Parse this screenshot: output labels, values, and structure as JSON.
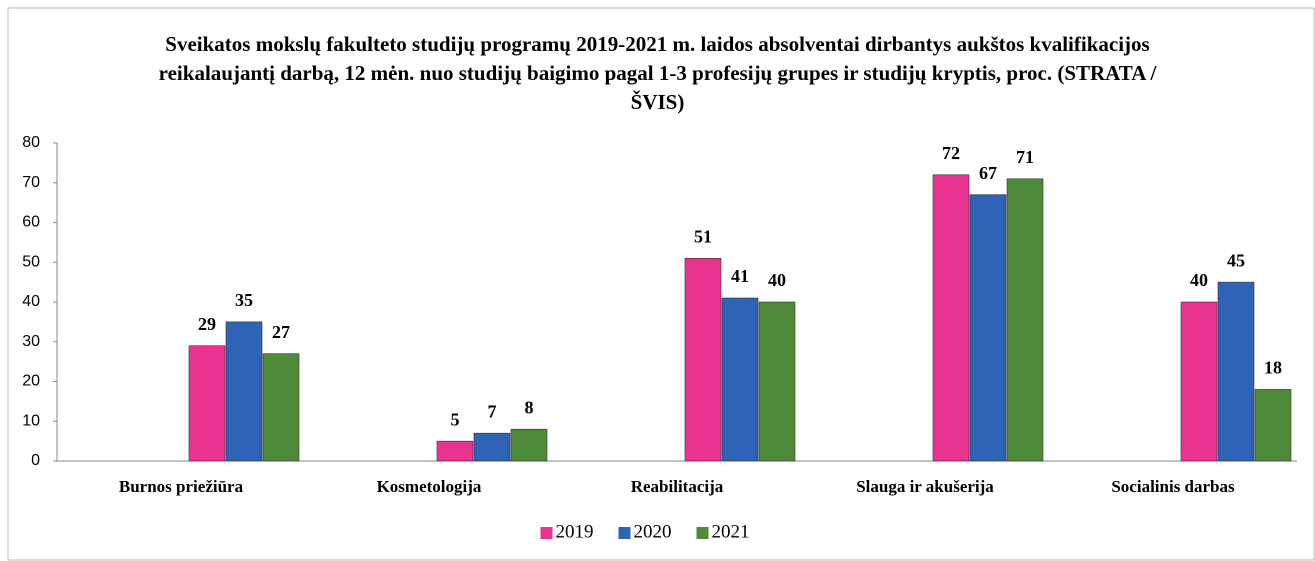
{
  "chart_data": {
    "type": "bar",
    "title": "Sveikatos mokslų fakulteto studijų programų 2019-2021 m. laidos absolventai dirbantys aukštos kvalifikacijos reikalaujantį darbą, 12 mėn. nuo studijų baigimo pagal 1-3 profesijų grupes ir studijų kryptis, proc. (STRATA /ŠVIS)",
    "categories": [
      "Burnos priežiūra",
      "Kosmetologija",
      "Reabilitacija",
      "Slauga ir akušerija",
      "Socialinis darbas"
    ],
    "series": [
      {
        "name": "2019",
        "color": "#e8338f",
        "values": [
          29,
          5,
          51,
          72,
          40
        ]
      },
      {
        "name": "2020",
        "color": "#2f63b5",
        "values": [
          35,
          7,
          41,
          67,
          45
        ]
      },
      {
        "name": "2021",
        "color": "#4f8a3b",
        "values": [
          27,
          8,
          40,
          71,
          18
        ]
      }
    ],
    "ylim": [
      0,
      80
    ],
    "yticks": [
      0,
      10,
      20,
      30,
      40,
      50,
      60,
      70,
      80
    ],
    "legend": "bottom"
  }
}
